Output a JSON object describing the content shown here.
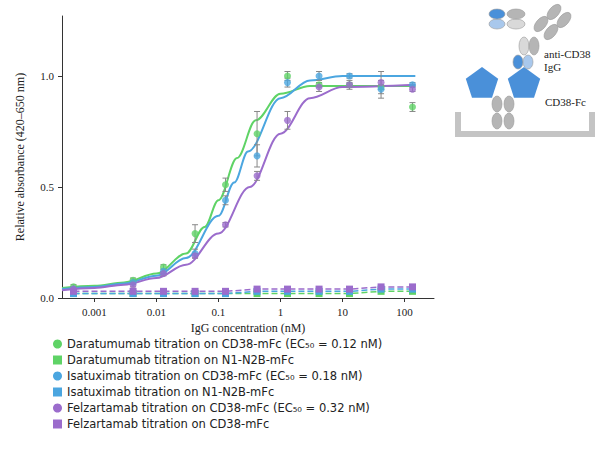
{
  "chart_data": {
    "type": "line",
    "x_label": "IgG concentration (nM)",
    "y_label": "Relative absorbance (420–650 nm)",
    "log": "x",
    "grid": false,
    "legend": "bottom",
    "xlim": [
      0.0003,
      300
    ],
    "xticks": [
      0.001,
      0.01,
      0.1,
      1,
      10,
      100
    ],
    "ylim": [
      0,
      1.27
    ],
    "yticks": [
      {
        "value": 0,
        "label": "0.0"
      },
      {
        "value": 0.5,
        "label": "0.5"
      },
      {
        "value": 1,
        "label": "1.0"
      }
    ],
    "annotations": [
      "anti-CD38 IgG",
      "CD38-Fc"
    ],
    "x": [
      0.00046,
      0.0042,
      0.013,
      0.042,
      0.13,
      0.42,
      1.3,
      4.2,
      13,
      42,
      135
    ],
    "series": [
      {
        "name": "Daratumumab titration on CD38-mFc (EC₅₀ = 0.12 nM)",
        "type": "scatter",
        "marker": "circle",
        "color": "#5fd366",
        "values": [
          0.05,
          0.08,
          0.14,
          0.29,
          0.51,
          0.74,
          1.0,
          0.96,
          0.96,
          0.95,
          0.86
        ],
        "errors": [
          0.01,
          0.01,
          0.01,
          0.04,
          0.03,
          0.1,
          0.02,
          0.01,
          0.01,
          0.01,
          0.02
        ],
        "fit": {
          "x": [
            0.0003,
            0.001,
            0.003,
            0.01,
            0.03,
            0.06,
            0.1,
            0.2,
            0.4,
            1,
            3,
            10,
            30,
            150
          ],
          "values": [
            0.045,
            0.055,
            0.07,
            0.11,
            0.2,
            0.32,
            0.44,
            0.63,
            0.8,
            0.92,
            0.955,
            0.955,
            0.955,
            0.955
          ]
        }
      },
      {
        "name": "Daratumumab titration on N1-N2B-mFc",
        "type": "line",
        "marker": "square",
        "line_style": "dashed",
        "color": "#5fd366",
        "values": [
          0.02,
          0.02,
          0.02,
          0.02,
          0.02,
          0.02,
          0.02,
          0.02,
          0.02,
          0.03,
          0.03
        ]
      },
      {
        "name": "Isatuximab titration on CD38-mFc (EC₅₀ = 0.18 nM)",
        "type": "scatter",
        "marker": "circle",
        "color": "#4ba6e0",
        "values": [
          0.04,
          0.07,
          0.12,
          0.2,
          0.44,
          0.64,
          0.97,
          1.0,
          1.0,
          0.94,
          0.96
        ],
        "errors": [
          0.01,
          0.01,
          0.01,
          0.02,
          0.02,
          0.05,
          0.02,
          0.02,
          0.01,
          0.04,
          0.01
        ],
        "fit": {
          "x": [
            0.0003,
            0.001,
            0.003,
            0.01,
            0.03,
            0.1,
            0.18,
            0.3,
            1,
            3,
            10,
            150
          ],
          "values": [
            0.04,
            0.05,
            0.065,
            0.1,
            0.18,
            0.37,
            0.52,
            0.66,
            0.9,
            0.98,
            1.0,
            1.0
          ]
        }
      },
      {
        "name": "Isatuximab titration on N1-N2B-mFc",
        "type": "line",
        "marker": "square",
        "line_style": "dashed",
        "color": "#4ba6e0",
        "values": [
          0.02,
          0.02,
          0.02,
          0.02,
          0.02,
          0.03,
          0.03,
          0.03,
          0.03,
          0.04,
          0.04
        ]
      },
      {
        "name": "Felzartamab titration on CD38-mFc (EC₅₀ = 0.32 nM)",
        "type": "scatter",
        "marker": "circle",
        "color": "#9b6ccc",
        "values": [
          0.04,
          0.06,
          0.11,
          0.19,
          0.33,
          0.55,
          0.8,
          0.95,
          0.96,
          0.97,
          0.94
        ],
        "errors": [
          0.01,
          0.01,
          0.01,
          0.01,
          0.01,
          0.02,
          0.04,
          0.02,
          0.02,
          0.05,
          0.01
        ],
        "fit": {
          "x": [
            0.0003,
            0.001,
            0.003,
            0.01,
            0.03,
            0.1,
            0.32,
            1,
            3,
            10,
            150
          ],
          "values": [
            0.035,
            0.045,
            0.06,
            0.09,
            0.15,
            0.29,
            0.5,
            0.74,
            0.9,
            0.95,
            0.96
          ]
        }
      },
      {
        "name": "Felzartamab titration on CD38-mFc",
        "type": "line",
        "marker": "square",
        "line_style": "dashed",
        "color": "#9b6ccc",
        "values": [
          0.03,
          0.03,
          0.03,
          0.03,
          0.03,
          0.04,
          0.04,
          0.04,
          0.04,
          0.05,
          0.05
        ]
      }
    ]
  }
}
